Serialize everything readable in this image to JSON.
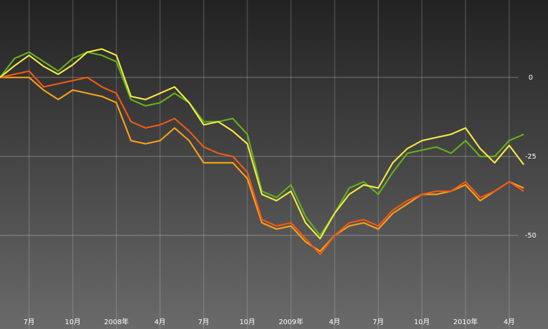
{
  "chart_data": {
    "type": "line",
    "categories": [
      null,
      null,
      "7月",
      null,
      null,
      "10月",
      null,
      null,
      "2008年",
      null,
      null,
      "4月",
      null,
      null,
      "7月",
      null,
      null,
      "10月",
      null,
      null,
      "2009年",
      null,
      null,
      "4月",
      null,
      null,
      "7月",
      null,
      null,
      "10月",
      null,
      null,
      "2010年",
      null,
      null,
      "4月",
      null
    ],
    "series": [
      {
        "color": "#f8a018",
        "values": [
          0,
          0,
          0,
          -4,
          -7,
          -4,
          -5,
          -6,
          -8,
          -20,
          -21,
          -20,
          -16,
          -20,
          -27,
          -27,
          -27,
          -32,
          -46,
          -48,
          -47,
          -52,
          -55,
          -50,
          -47,
          -46,
          -48,
          -43,
          -40,
          -37,
          -37,
          -36,
          -34,
          -39,
          -36,
          -33,
          -35
        ]
      },
      {
        "color": "#f05a14",
        "values": [
          0,
          1,
          2,
          -3,
          -2,
          -1,
          0,
          -3,
          -5,
          -14,
          -16,
          -15,
          -13,
          -17,
          -22,
          -24,
          -25,
          -30,
          -45,
          -47,
          -46,
          -51,
          -56,
          -50,
          -46,
          -45,
          -47,
          -42,
          -39,
          -37,
          -36,
          -36,
          -33,
          -38,
          -36,
          -33,
          -36
        ]
      },
      {
        "color": "#64b020",
        "values": [
          0,
          6,
          8,
          5,
          2,
          6,
          8,
          7,
          5,
          -7,
          -9,
          -8,
          -5,
          -8,
          -14,
          -14,
          -13,
          -18,
          -36,
          -38,
          -34,
          -44,
          -50,
          -43,
          -35,
          -33,
          -37,
          -30,
          -24,
          -23,
          -22,
          -24,
          -20,
          -25,
          -25,
          -20,
          -18
        ]
      },
      {
        "color": "#f4e844",
        "values": [
          0,
          3.7,
          7,
          3.5,
          1,
          4,
          8,
          9,
          7,
          -6,
          -7,
          -5,
          -3,
          -8,
          -15,
          -14,
          -17,
          -21,
          -37,
          -39,
          -36,
          -46,
          -51,
          -43,
          -37,
          -34,
          -35,
          -27,
          -22.5,
          -20,
          -19,
          -18,
          -16,
          -22.5,
          -27,
          -21.5,
          -27.6
        ]
      }
    ],
    "ylim": [
      -75,
      24.5
    ],
    "yticks": [
      0,
      -25,
      -50
    ],
    "grid": true
  }
}
